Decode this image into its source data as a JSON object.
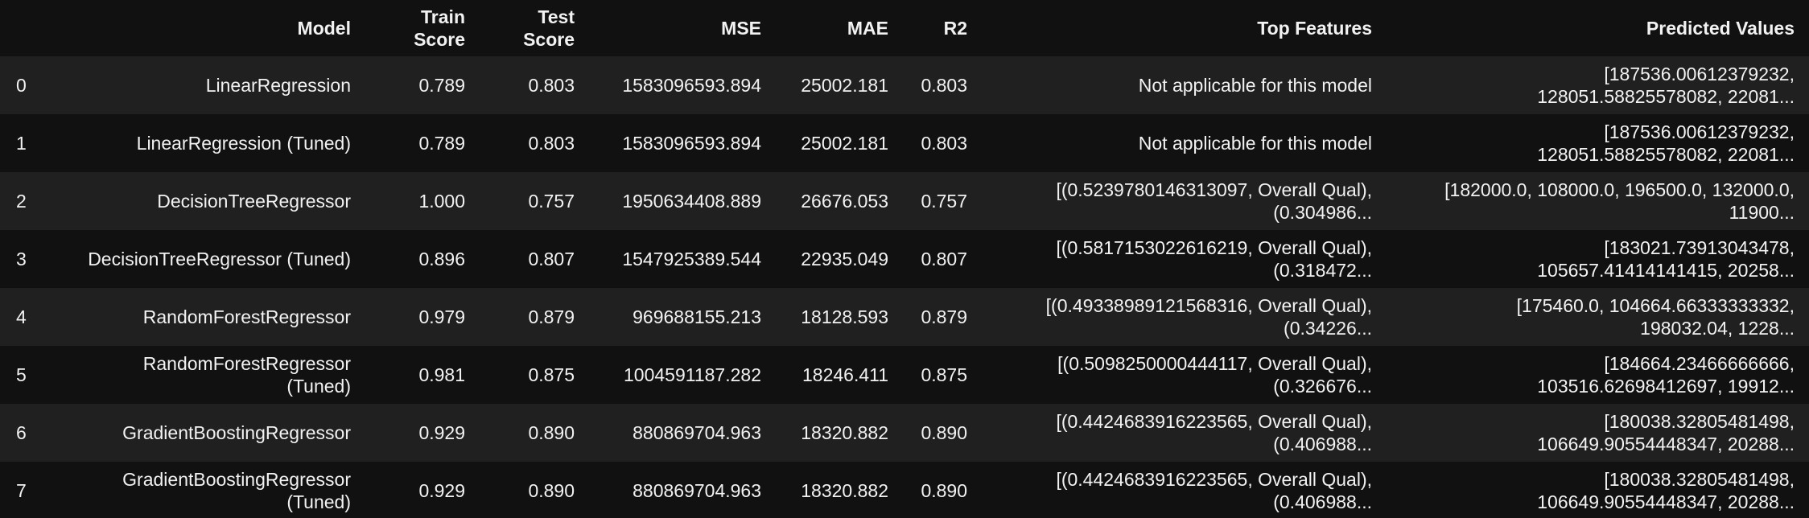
{
  "table": {
    "columns": [
      {
        "key": "index",
        "lines": [
          ""
        ]
      },
      {
        "key": "model",
        "lines": [
          "Model"
        ]
      },
      {
        "key": "train",
        "lines": [
          "Train",
          "Score"
        ]
      },
      {
        "key": "test",
        "lines": [
          "Test",
          "Score"
        ]
      },
      {
        "key": "mse",
        "lines": [
          "MSE"
        ]
      },
      {
        "key": "mae",
        "lines": [
          "MAE"
        ]
      },
      {
        "key": "r2",
        "lines": [
          "R2"
        ]
      },
      {
        "key": "features",
        "lines": [
          "Top Features"
        ]
      },
      {
        "key": "predicted",
        "lines": [
          "Predicted Values"
        ]
      }
    ],
    "rows": [
      {
        "index": "0",
        "model": [
          "LinearRegression"
        ],
        "train": "0.789",
        "test": "0.803",
        "mse": "1583096593.894",
        "mae": "25002.181",
        "r2": "0.803",
        "features": [
          "Not applicable for this model"
        ],
        "predicted": [
          "[187536.00612379232,",
          "128051.58825578082, 22081..."
        ]
      },
      {
        "index": "1",
        "model": [
          "LinearRegression (Tuned)"
        ],
        "train": "0.789",
        "test": "0.803",
        "mse": "1583096593.894",
        "mae": "25002.181",
        "r2": "0.803",
        "features": [
          "Not applicable for this model"
        ],
        "predicted": [
          "[187536.00612379232,",
          "128051.58825578082, 22081..."
        ]
      },
      {
        "index": "2",
        "model": [
          "DecisionTreeRegressor"
        ],
        "train": "1.000",
        "test": "0.757",
        "mse": "1950634408.889",
        "mae": "26676.053",
        "r2": "0.757",
        "features": [
          "[(0.5239780146313097, Overall Qual),",
          "(0.304986..."
        ],
        "predicted": [
          "[182000.0, 108000.0, 196500.0, 132000.0,",
          "11900..."
        ]
      },
      {
        "index": "3",
        "model": [
          "DecisionTreeRegressor (Tuned)"
        ],
        "train": "0.896",
        "test": "0.807",
        "mse": "1547925389.544",
        "mae": "22935.049",
        "r2": "0.807",
        "features": [
          "[(0.5817153022616219, Overall Qual),",
          "(0.318472..."
        ],
        "predicted": [
          "[183021.73913043478,",
          "105657.41414141415, 20258..."
        ]
      },
      {
        "index": "4",
        "model": [
          "RandomForestRegressor"
        ],
        "train": "0.979",
        "test": "0.879",
        "mse": "969688155.213",
        "mae": "18128.593",
        "r2": "0.879",
        "features": [
          "[(0.49338989121568316, Overall Qual),",
          "(0.34226..."
        ],
        "predicted": [
          "[175460.0, 104664.66333333332,",
          "198032.04, 1228..."
        ]
      },
      {
        "index": "5",
        "model": [
          "RandomForestRegressor",
          "(Tuned)"
        ],
        "train": "0.981",
        "test": "0.875",
        "mse": "1004591187.282",
        "mae": "18246.411",
        "r2": "0.875",
        "features": [
          "[(0.5098250000444117, Overall Qual),",
          "(0.326676..."
        ],
        "predicted": [
          "[184664.23466666666,",
          "103516.62698412697, 19912..."
        ]
      },
      {
        "index": "6",
        "model": [
          "GradientBoostingRegressor"
        ],
        "train": "0.929",
        "test": "0.890",
        "mse": "880869704.963",
        "mae": "18320.882",
        "r2": "0.890",
        "features": [
          "[(0.4424683916223565, Overall Qual),",
          "(0.406988..."
        ],
        "predicted": [
          "[180038.32805481498,",
          "106649.90554448347, 20288..."
        ]
      },
      {
        "index": "7",
        "model": [
          "GradientBoostingRegressor",
          "(Tuned)"
        ],
        "train": "0.929",
        "test": "0.890",
        "mse": "880869704.963",
        "mae": "18320.882",
        "r2": "0.890",
        "features": [
          "[(0.4424683916223565, Overall Qual),",
          "(0.406988..."
        ],
        "predicted": [
          "[180038.32805481498,",
          "106649.90554448347, 20288..."
        ]
      }
    ]
  }
}
